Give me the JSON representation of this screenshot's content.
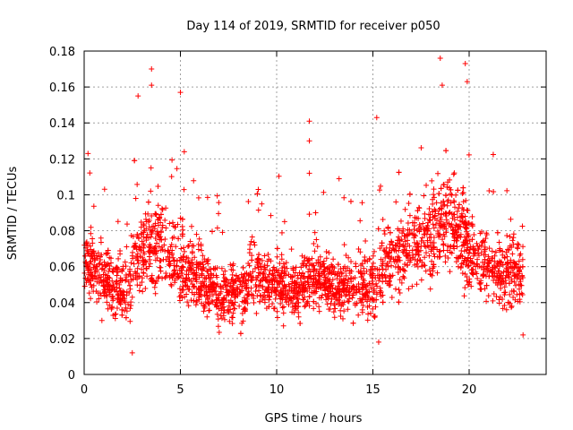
{
  "chart_data": {
    "type": "scatter",
    "title": "Day 114 of 2019, SRMTID for receiver p050",
    "xlabel": "GPS time / hours",
    "ylabel": "SRMTID / TECUs",
    "xlim": [
      0,
      24
    ],
    "ylim": [
      0,
      0.18
    ],
    "x_ticks": [
      0,
      5,
      10,
      15,
      20
    ],
    "x_tick_labels": [
      "0",
      "5",
      "10",
      "15",
      "20"
    ],
    "y_ticks": [
      0,
      0.02,
      0.04,
      0.06,
      0.08,
      0.1,
      0.12,
      0.14,
      0.16,
      0.18
    ],
    "y_tick_labels": [
      "0",
      "0.02",
      "0.04",
      "0.06",
      "0.08",
      "0.1",
      "0.12",
      "0.14",
      "0.16",
      "0.18"
    ],
    "grid": true,
    "marker": "+",
    "series": [
      {
        "name": "SRMTID p050",
        "color": "#ff0000",
        "x_range": [
          0,
          22.8
        ],
        "approx_point_count": 2800,
        "notes": "Dense scatter of SRMTID values, typical 0.02-0.10 TECU, with spikes up to about 0.17-0.176 near hours 3.5 and 18.5-20.",
        "highlight_points": [
          {
            "x": 0.2,
            "y": 0.123
          },
          {
            "x": 2.5,
            "y": 0.012
          },
          {
            "x": 2.8,
            "y": 0.155
          },
          {
            "x": 3.5,
            "y": 0.17
          },
          {
            "x": 3.5,
            "y": 0.161
          },
          {
            "x": 5.0,
            "y": 0.157
          },
          {
            "x": 11.7,
            "y": 0.141
          },
          {
            "x": 11.7,
            "y": 0.13
          },
          {
            "x": 11.7,
            "y": 0.112
          },
          {
            "x": 15.2,
            "y": 0.143
          },
          {
            "x": 15.3,
            "y": 0.018
          },
          {
            "x": 18.5,
            "y": 0.176
          },
          {
            "x": 18.6,
            "y": 0.161
          },
          {
            "x": 19.8,
            "y": 0.173
          },
          {
            "x": 19.9,
            "y": 0.163
          },
          {
            "x": 22.8,
            "y": 0.022
          }
        ]
      }
    ]
  }
}
